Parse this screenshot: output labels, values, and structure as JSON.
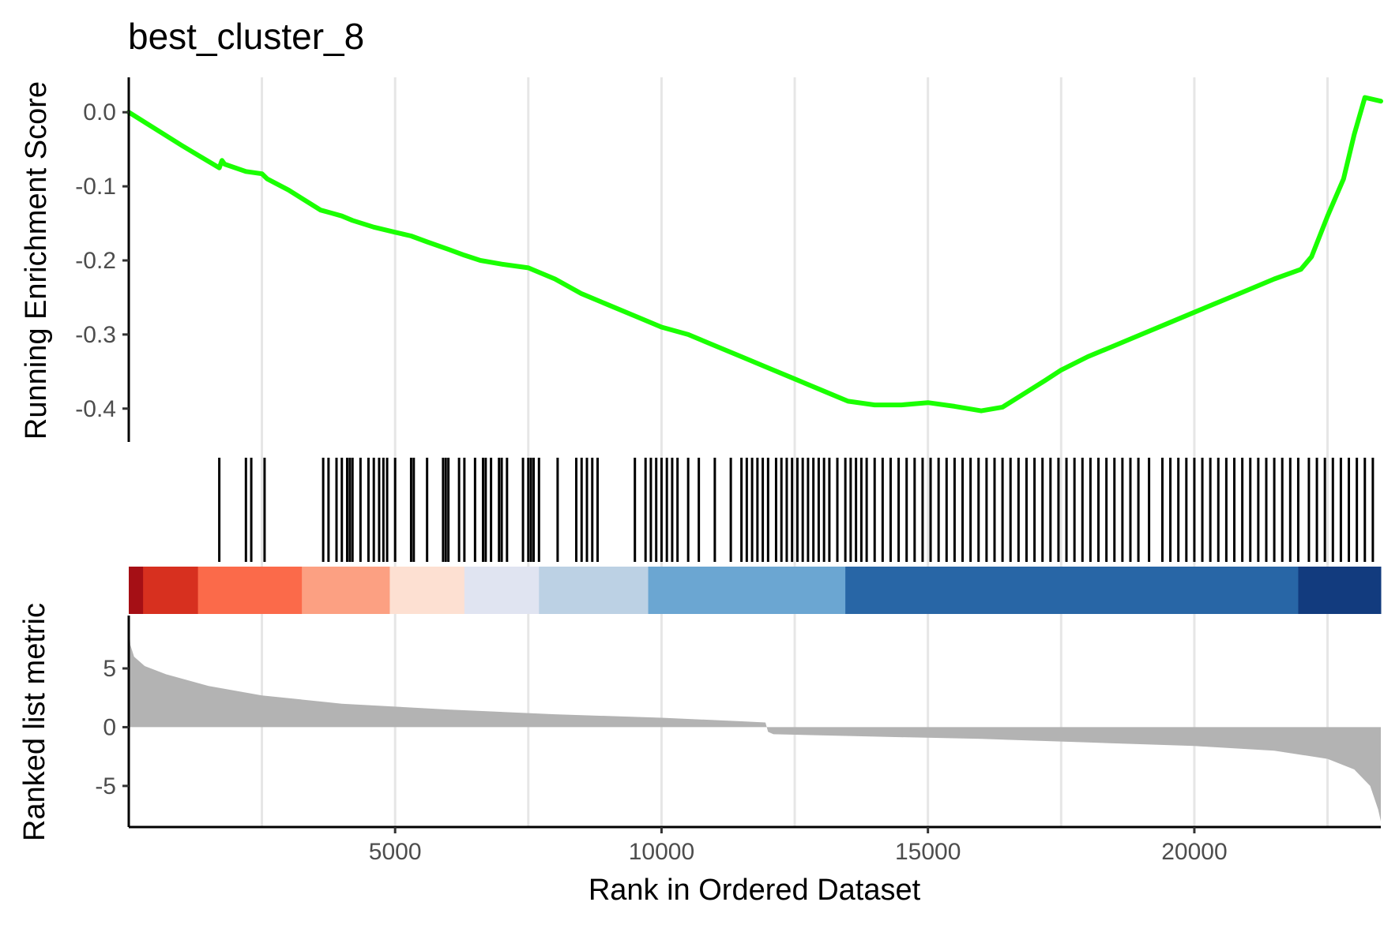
{
  "chart_data": {
    "type": "line",
    "title": "best_cluster_8",
    "xlabel": "Rank in Ordered Dataset",
    "ylabel_top": "Running Enrichment Score",
    "ylabel_bottom": "Ranked list metric",
    "xlim": [
      1,
      23500
    ],
    "x_ticks": [
      5000,
      10000,
      15000,
      20000
    ],
    "x_tick_labels": [
      "5000",
      "10000",
      "15000",
      "20000"
    ],
    "x_gridlines": [
      2500,
      5000,
      7500,
      10000,
      12500,
      15000,
      17500,
      20000,
      22500
    ],
    "es_ylim": [
      -0.445,
      0.045
    ],
    "es_ticks": [
      0.0,
      -0.1,
      -0.2,
      -0.3,
      -0.4
    ],
    "es_tick_labels": [
      "0.0",
      "-0.1",
      "-0.2",
      "-0.3",
      "-0.4"
    ],
    "metric_ylim": [
      -8.5,
      9.5
    ],
    "metric_ticks": [
      5,
      0,
      -5
    ],
    "metric_tick_labels": [
      "5",
      "0",
      "-5"
    ],
    "grid": "vertical major and minor gridlines on the x axis",
    "legend": "none",
    "colors": {
      "running_es": "#1aff00",
      "hit_ticks": "#000000",
      "metric_area": "#b3b3b3",
      "axis": "#000000",
      "grid": "#e6e6e6"
    },
    "series": [
      {
        "name": "Running Enrichment Score",
        "x": [
          1,
          1000,
          1700,
          1750,
          1800,
          2200,
          2500,
          2600,
          3000,
          3600,
          3800,
          4000,
          4200,
          4600,
          5000,
          5300,
          5600,
          6000,
          6300,
          6600,
          7000,
          7500,
          8000,
          8500,
          9000,
          9500,
          10000,
          10500,
          11000,
          11500,
          12000,
          12500,
          13000,
          13500,
          14000,
          14500,
          15000,
          15500,
          16000,
          16400,
          16800,
          17200,
          17500,
          18000,
          18500,
          19000,
          19500,
          20000,
          20500,
          21000,
          21500,
          22000,
          22200,
          22500,
          22800,
          23000,
          23200,
          23500
        ],
        "y": [
          0.0,
          -0.045,
          -0.075,
          -0.065,
          -0.07,
          -0.08,
          -0.083,
          -0.09,
          -0.105,
          -0.132,
          -0.136,
          -0.14,
          -0.146,
          -0.155,
          -0.162,
          -0.167,
          -0.175,
          -0.185,
          -0.193,
          -0.2,
          -0.205,
          -0.21,
          -0.225,
          -0.245,
          -0.26,
          -0.275,
          -0.29,
          -0.3,
          -0.315,
          -0.33,
          -0.345,
          -0.36,
          -0.375,
          -0.39,
          -0.395,
          -0.395,
          -0.392,
          -0.397,
          -0.403,
          -0.398,
          -0.38,
          -0.362,
          -0.348,
          -0.33,
          -0.315,
          -0.3,
          -0.285,
          -0.27,
          -0.255,
          -0.24,
          -0.225,
          -0.212,
          -0.195,
          -0.14,
          -0.09,
          -0.03,
          0.02,
          0.015
        ]
      }
    ],
    "gene_hits_x": [
      1700,
      2200,
      2300,
      2550,
      3650,
      3750,
      3900,
      4000,
      4100,
      4150,
      4200,
      4350,
      4500,
      4600,
      4700,
      4780,
      4850,
      5000,
      5300,
      5350,
      5600,
      5900,
      5950,
      6000,
      6200,
      6300,
      6500,
      6650,
      6700,
      6800,
      6950,
      7000,
      7100,
      7400,
      7500,
      7550,
      7600,
      7700,
      8050,
      8400,
      8500,
      8600,
      8700,
      8800,
      9500,
      9700,
      9800,
      9900,
      10000,
      10100,
      10200,
      10300,
      10500,
      10700,
      11000,
      11300,
      11500,
      11600,
      11700,
      11800,
      11900,
      12000,
      12150,
      12250,
      12350,
      12450,
      12550,
      12650,
      12750,
      12850,
      12950,
      13050,
      13150,
      13300,
      13450,
      13550,
      13650,
      13750,
      13850,
      14000,
      14150,
      14300,
      14450,
      14600,
      14750,
      14900,
      15050,
      15200,
      15350,
      15500,
      15650,
      15800,
      15950,
      16100,
      16250,
      16400,
      16550,
      16700,
      16850,
      17000,
      17150,
      17300,
      17450,
      17600,
      17750,
      17900,
      18050,
      18200,
      18350,
      18500,
      18650,
      18800,
      18950,
      19150,
      19400,
      19550,
      19700,
      19850,
      20000,
      20150,
      20300,
      20450,
      20600,
      20750,
      20900,
      21050,
      21200,
      21350,
      21500,
      21650,
      21800,
      21950,
      22150,
      22300,
      22450,
      22600,
      22750,
      22900,
      23050,
      23200,
      23350
    ],
    "ranked_metric": {
      "x": [
        1,
        30,
        100,
        300,
        700,
        1500,
        2500,
        4000,
        6000,
        8000,
        10000,
        11500,
        11950,
        12000,
        12100,
        14000,
        16000,
        18000,
        20000,
        21500,
        22500,
        23000,
        23300,
        23450,
        23500
      ],
      "y": [
        9.0,
        7.0,
        6.0,
        5.2,
        4.5,
        3.5,
        2.7,
        2.0,
        1.5,
        1.1,
        0.8,
        0.5,
        0.4,
        -0.4,
        -0.6,
        -0.8,
        -1.0,
        -1.3,
        -1.6,
        -2.0,
        -2.7,
        -3.6,
        -5.0,
        -7.0,
        -8.0
      ]
    },
    "color_bar": {
      "x_breaks": [
        1,
        270,
        1300,
        3250,
        4900,
        6300,
        7700,
        9750,
        13450,
        21950,
        23500
      ],
      "colors": [
        "#a50f15",
        "#d7301f",
        "#fb6a4a",
        "#fca082",
        "#fde0d2",
        "#e0e4f1",
        "#bcd1e4",
        "#6ba6d2",
        "#2866a6",
        "#123b7e"
      ]
    }
  }
}
